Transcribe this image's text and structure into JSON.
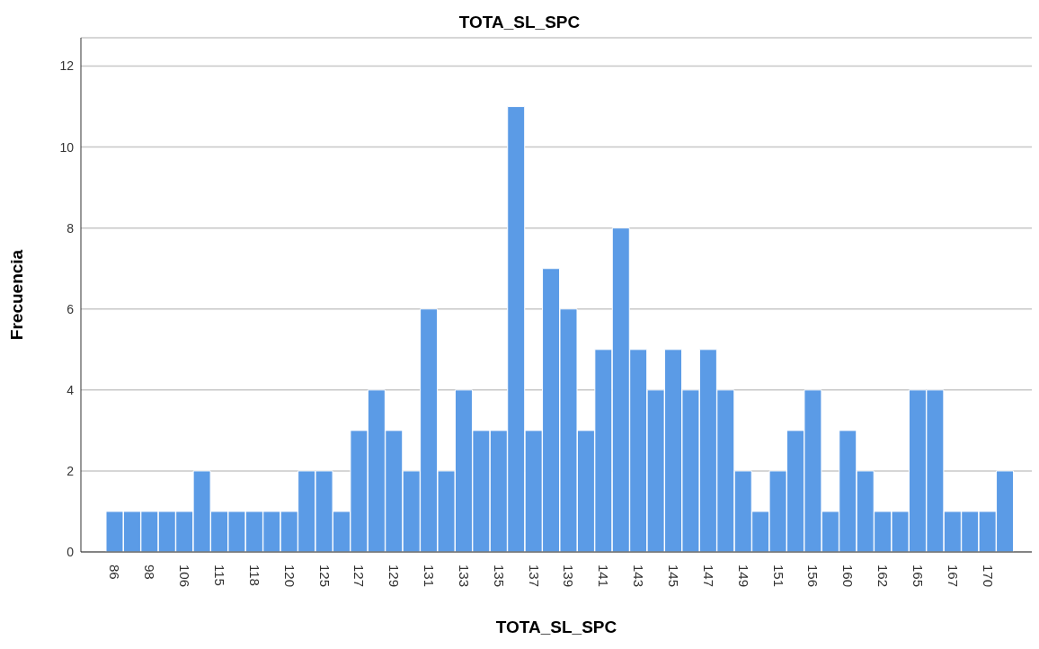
{
  "chart_data": {
    "type": "bar",
    "title": "TOTA_SL_SPC",
    "xlabel": "TOTA_SL_SPC",
    "ylabel": "Frecuencia",
    "categories": [
      "86",
      null,
      "98",
      null,
      "106",
      null,
      "115",
      null,
      "118",
      null,
      "120",
      null,
      "125",
      null,
      "127",
      null,
      "129",
      null,
      "131",
      null,
      "133",
      null,
      "135",
      null,
      "137",
      null,
      "139",
      null,
      "141",
      null,
      "143",
      null,
      "145",
      null,
      "147",
      null,
      "149",
      null,
      "151",
      null,
      "156",
      null,
      "160",
      null,
      "162",
      null,
      "165",
      null,
      "167",
      null,
      "170",
      null
    ],
    "values": [
      1,
      1,
      1,
      1,
      1,
      2,
      1,
      1,
      1,
      1,
      1,
      2,
      2,
      1,
      3,
      4,
      3,
      2,
      6,
      2,
      4,
      3,
      3,
      11,
      3,
      7,
      6,
      3,
      5,
      8,
      5,
      4,
      5,
      4,
      5,
      4,
      2,
      1,
      2,
      3,
      4,
      1,
      3,
      2,
      1,
      1,
      4,
      4,
      1,
      1,
      1,
      2
    ],
    "color": "#5b9be6",
    "ylim": [
      0,
      12.7
    ],
    "yticks": [
      0,
      2,
      4,
      6,
      8,
      10,
      12
    ],
    "grid": "y"
  }
}
